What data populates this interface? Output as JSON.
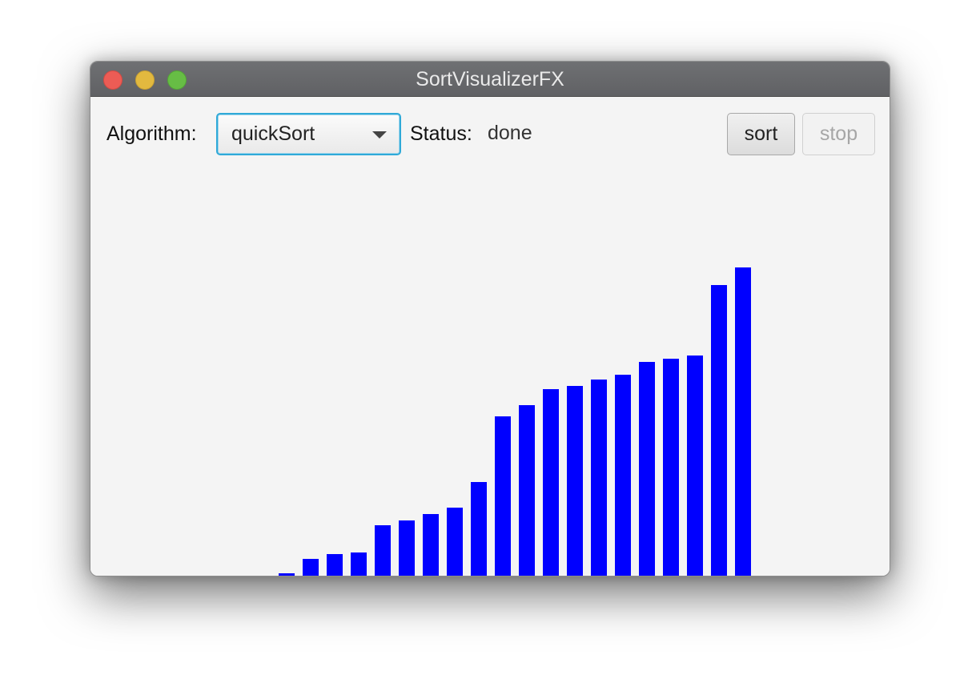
{
  "window": {
    "title": "SortVisualizerFX"
  },
  "toolbar": {
    "algorithm_label": "Algorithm:",
    "algorithm_selected": "quickSort",
    "status_label": "Status:",
    "status_value": "done",
    "sort_label": "sort",
    "stop_label": "stop",
    "stop_enabled": false
  },
  "colors": {
    "bar": "#0000ff",
    "focus_ring": "#2fa9d8",
    "close": "#ec5c55",
    "minimize": "#e2b93f",
    "zoom": "#67bd45"
  },
  "chart_data": {
    "type": "bar",
    "values": [
      0,
      0,
      0,
      0,
      0,
      0,
      0,
      3,
      21,
      27,
      29,
      63,
      69,
      77,
      85,
      117,
      199,
      213,
      233,
      237,
      245,
      251,
      267,
      271,
      275,
      363,
      385
    ],
    "xlabel": "",
    "ylabel": "",
    "grid": false
  }
}
